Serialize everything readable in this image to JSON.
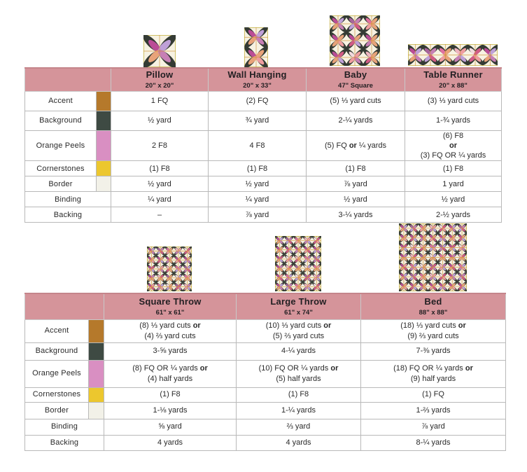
{
  "colors": {
    "header_pink": "#d5949a",
    "header_top_edge": "#c5858b",
    "grid_line": "#b9b9b9",
    "swatch_accent": "#b5792b",
    "swatch_background": "#3e4a43",
    "swatch_orange_peels": "#d98fc2",
    "swatch_cornerstones": "#ecc72e",
    "swatch_border": "#f2f1e8",
    "quilt_cream": "#f7f2e2",
    "quilt_gold_edge": "#cfc167",
    "quilt_dark_petal": "#343b34",
    "quilt_sashing": "#cf8c2f",
    "quilt_pink_palette": [
      "#bb4d96",
      "#ef9d9f",
      "#e0719f",
      "#bfa0d8",
      "#f2dade",
      "#e8a379",
      "#a9659c",
      "#d25c86",
      "#f0b5c0",
      "#c77fb5"
    ]
  },
  "tables": [
    {
      "id": "small-sizes",
      "columns": [
        {
          "label": "Pillow",
          "size": "20\" x 20\""
        },
        {
          "label": "Wall Hanging",
          "size": "20\" x 33\""
        },
        {
          "label": "Baby",
          "size": "47\" Square"
        },
        {
          "label": "Table Runner",
          "size": "20\" x 88\""
        }
      ],
      "rows": [
        {
          "label": "Accent",
          "swatch": "#b5792b",
          "values": [
            "1 FQ",
            "(2) FQ",
            "(5) ⅓ yard cuts",
            "(3) ⅓ yard cuts"
          ]
        },
        {
          "label": "Background",
          "swatch": "#3e4a43",
          "values": [
            "½ yard",
            "¾ yard",
            "2-¼ yards",
            "1-¾ yards"
          ]
        },
        {
          "label": "Orange Peels",
          "swatch": "#d98fc2",
          "values": [
            "2 F8",
            "4 F8",
            "(5) FQ **or** ¼ yards",
            "(6) F8\n**or**\n(3) FQ OR ¼ yards"
          ]
        },
        {
          "label": "Cornerstones",
          "swatch": "#ecc72e",
          "values": [
            "(1) F8",
            "(1) F8",
            "(1) F8",
            "(1) F8"
          ]
        },
        {
          "label": "Border",
          "swatch": "#f2f1e8",
          "values": [
            "½ yard",
            "½ yard",
            "⅞ yard",
            "1 yard"
          ]
        },
        {
          "label": "Binding",
          "swatch": null,
          "values": [
            "¼ yard",
            "¼ yard",
            "½ yard",
            "½ yard"
          ]
        },
        {
          "label": "Backing",
          "swatch": null,
          "values": [
            "–",
            "⅞ yard",
            "3-¼ yards",
            "2-½ yards"
          ]
        }
      ]
    },
    {
      "id": "large-sizes",
      "columns": [
        {
          "label": "Square Throw",
          "size": "61\" x 61\""
        },
        {
          "label": "Large Throw",
          "size": "61\" x 74\""
        },
        {
          "label": "Bed",
          "size": "88\" x 88\""
        }
      ],
      "rows": [
        {
          "label": "Accent",
          "swatch": "#b5792b",
          "values": [
            "(8) ⅓ yard cuts **or**\n(4) ⅔ yard cuts",
            "(10) ⅓ yard cuts **or**\n(5) ⅔ yard cuts",
            "(18) ⅓ yard cuts **or**\n(9) ⅔ yard cuts"
          ]
        },
        {
          "label": "Background",
          "swatch": "#3e4a43",
          "values": [
            "3-⅝ yards",
            "4-¼ yards",
            "7-⅜ yards"
          ]
        },
        {
          "label": "Orange Peels",
          "swatch": "#d98fc2",
          "values": [
            "(8) FQ OR ¼ yards **or**\n(4) half yards",
            "(10) FQ OR ¼ yards **or**\n(5) half yards",
            "(18) FQ OR ¼ yards **or**\n(9) half yards"
          ]
        },
        {
          "label": "Cornerstones",
          "swatch": "#ecc72e",
          "values": [
            "(1) F8",
            "(1) F8",
            "(1) FQ"
          ]
        },
        {
          "label": "Border",
          "swatch": "#f2f1e8",
          "values": [
            "1-⅛ yards",
            "1-¼ yards",
            "1-⅔ yards"
          ]
        },
        {
          "label": "Binding",
          "swatch": null,
          "values": [
            "⅝ yard",
            "⅔ yard",
            "⅞ yard"
          ]
        },
        {
          "label": "Backing",
          "swatch": null,
          "values": [
            "4 yards",
            "4 yards",
            "8-¼ yards"
          ]
        }
      ]
    }
  ],
  "quilts": [
    {
      "name": "pillow",
      "blocks_across": 1,
      "blocks_down": 1
    },
    {
      "name": "wall-hanging",
      "blocks_across": 1,
      "blocks_down": 2
    },
    {
      "name": "baby",
      "blocks_across": 3,
      "blocks_down": 3
    },
    {
      "name": "table-runner",
      "blocks_across": 6,
      "blocks_down": 1
    },
    {
      "name": "square-throw",
      "blocks_across": 5,
      "blocks_down": 5
    },
    {
      "name": "large-throw",
      "blocks_across": 5,
      "blocks_down": 6
    },
    {
      "name": "bed",
      "blocks_across": 7,
      "blocks_down": 7
    }
  ]
}
